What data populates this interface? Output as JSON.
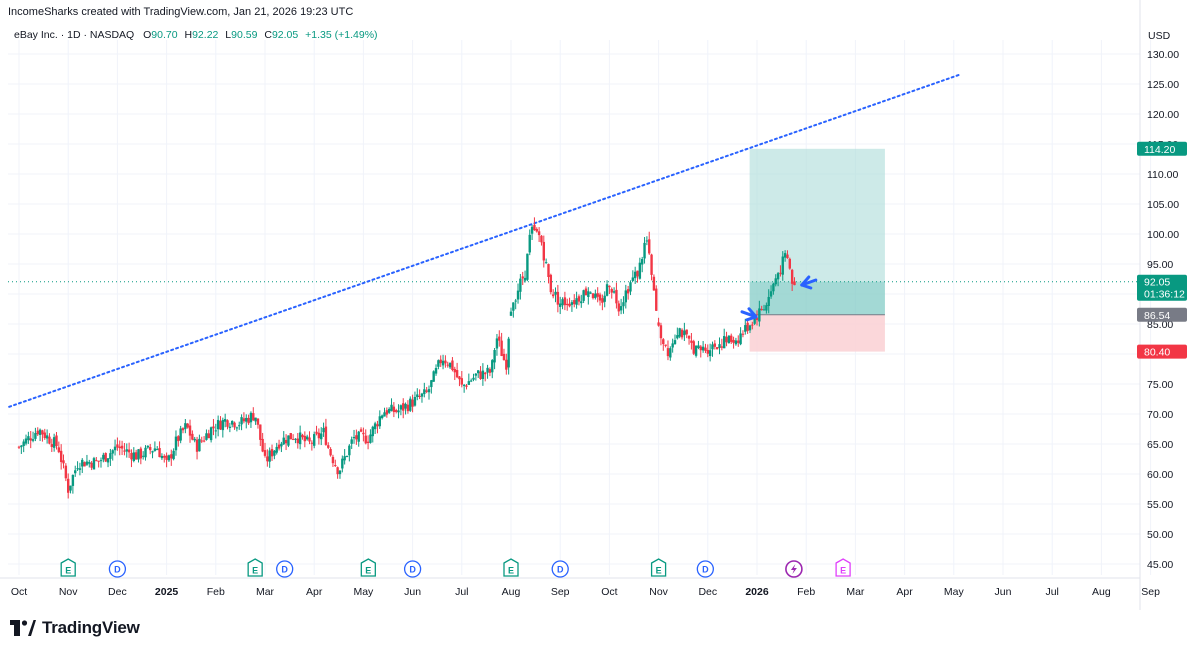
{
  "header": {
    "caption": "IncomeSharks created with TradingView.com, Jan 21, 2026 19:23 UTC",
    "symbol": "eBay Inc. · 1D · NASDAQ",
    "o_label": "O",
    "o_value": "90.70",
    "h_label": "H",
    "h_value": "92.22",
    "l_label": "L",
    "l_value": "90.59",
    "c_label": "C",
    "c_value": "92.05",
    "change": "+1.35 (+1.49%)"
  },
  "currency": "USD",
  "logo_text": "TradingView",
  "colors": {
    "up": "#089981",
    "down": "#f23645",
    "trendline": "#2962ff",
    "target_zone": "#b2dfdb",
    "stop_zone": "#fbd3d6",
    "arrow": "#2962ff"
  },
  "chart_data": {
    "type": "candlestick",
    "ylim": [
      42,
      134
    ],
    "y_ticks": [
      "130.00",
      "125.00",
      "120.00",
      "115.00",
      "110.00",
      "105.00",
      "100.00",
      "95.00",
      "90.00",
      "85.00",
      "80.00",
      "75.00",
      "70.00",
      "65.00",
      "60.00",
      "55.00",
      "50.00",
      "45.00"
    ],
    "y_tick_values": [
      130,
      125,
      120,
      115,
      110,
      105,
      100,
      95,
      90,
      85,
      80,
      75,
      70,
      65,
      60,
      55,
      50,
      45
    ],
    "x_labels": [
      "Oct",
      "Nov",
      "Dec",
      "2025",
      "Feb",
      "Mar",
      "Apr",
      "May",
      "Jun",
      "Jul",
      "Aug",
      "Sep",
      "Oct",
      "Nov",
      "Dec",
      "2026",
      "Feb",
      "Mar",
      "Apr",
      "May",
      "Jun",
      "Jul",
      "Aug",
      "Sep"
    ],
    "x_label_bold": [
      "2025",
      "2026"
    ],
    "timeline_months_from_oct_2024": [
      0,
      1,
      2,
      3,
      4,
      5,
      6,
      7,
      8,
      9,
      10,
      11,
      12,
      13,
      14,
      15,
      16,
      17,
      18,
      19,
      20,
      21,
      22,
      23
    ],
    "anchor_closes": [
      [
        0.0,
        64.5
      ],
      [
        0.4,
        67.5
      ],
      [
        0.8,
        64.5
      ],
      [
        1.0,
        57.5
      ],
      [
        1.2,
        62
      ],
      [
        1.6,
        62
      ],
      [
        2.0,
        64.5
      ],
      [
        2.4,
        63
      ],
      [
        2.8,
        64.5
      ],
      [
        3.0,
        61.5
      ],
      [
        3.2,
        65.5
      ],
      [
        3.4,
        68
      ],
      [
        3.6,
        64.5
      ],
      [
        3.9,
        67.5
      ],
      [
        4.2,
        69
      ],
      [
        4.5,
        68.5
      ],
      [
        4.8,
        70
      ],
      [
        5.0,
        62
      ],
      [
        5.3,
        65.5
      ],
      [
        5.6,
        66.5
      ],
      [
        5.9,
        65
      ],
      [
        6.2,
        67
      ],
      [
        6.3,
        64
      ],
      [
        6.5,
        60.5
      ],
      [
        6.8,
        66
      ],
      [
        7.1,
        66
      ],
      [
        7.4,
        70.5
      ],
      [
        7.7,
        70.5
      ],
      [
        8.0,
        72
      ],
      [
        8.3,
        73.5
      ],
      [
        8.6,
        79.5
      ],
      [
        8.8,
        78
      ],
      [
        9.0,
        74.5
      ],
      [
        9.3,
        76.5
      ],
      [
        9.6,
        77
      ],
      [
        9.7,
        83
      ],
      [
        9.9,
        78
      ],
      [
        10.0,
        88
      ],
      [
        10.3,
        94
      ],
      [
        10.4,
        100.5
      ],
      [
        10.6,
        99.5
      ],
      [
        10.8,
        91
      ],
      [
        11.0,
        88.5
      ],
      [
        11.3,
        89
      ],
      [
        11.6,
        91
      ],
      [
        11.8,
        88
      ],
      [
        12.0,
        92
      ],
      [
        12.2,
        88
      ],
      [
        12.4,
        91.5
      ],
      [
        12.6,
        94
      ],
      [
        12.75,
        99.5
      ],
      [
        13.0,
        84
      ],
      [
        13.2,
        80.5
      ],
      [
        13.4,
        84.5
      ],
      [
        13.6,
        82
      ],
      [
        13.8,
        80.5
      ],
      [
        14.0,
        81
      ],
      [
        14.3,
        82
      ],
      [
        14.6,
        82.5
      ],
      [
        14.8,
        84.5
      ],
      [
        15.0,
        86.5
      ],
      [
        15.2,
        88.5
      ],
      [
        15.4,
        93
      ],
      [
        15.6,
        96.5
      ],
      [
        15.75,
        90.7
      ],
      [
        15.8,
        92.05
      ]
    ],
    "trendline": {
      "x_start": -0.2,
      "y_start": 71.2,
      "x_end": 19.1,
      "y_end": 126.5
    },
    "position": {
      "entry": 86.54,
      "target": 114.2,
      "stop": 80.4,
      "current": 92.05,
      "countdown": "01:36:12",
      "x_start": 14.85,
      "x_end": 17.6
    },
    "price_labels": {
      "target": "114.20",
      "current": "92.05",
      "countdown": "01:36:12",
      "entry": "86.54",
      "stop": "80.40"
    },
    "events": [
      {
        "type": "E",
        "x": 1.0
      },
      {
        "type": "D",
        "x": 2.0
      },
      {
        "type": "E",
        "x": 4.8
      },
      {
        "type": "D",
        "x": 5.4
      },
      {
        "type": "E",
        "x": 7.1
      },
      {
        "type": "D",
        "x": 8.0
      },
      {
        "type": "E",
        "x": 10.0
      },
      {
        "type": "D",
        "x": 11.0
      },
      {
        "type": "E",
        "x": 13.0
      },
      {
        "type": "D",
        "x": 13.95
      },
      {
        "type": "flash",
        "x": 15.75
      },
      {
        "type": "E-future",
        "x": 16.75
      }
    ]
  }
}
